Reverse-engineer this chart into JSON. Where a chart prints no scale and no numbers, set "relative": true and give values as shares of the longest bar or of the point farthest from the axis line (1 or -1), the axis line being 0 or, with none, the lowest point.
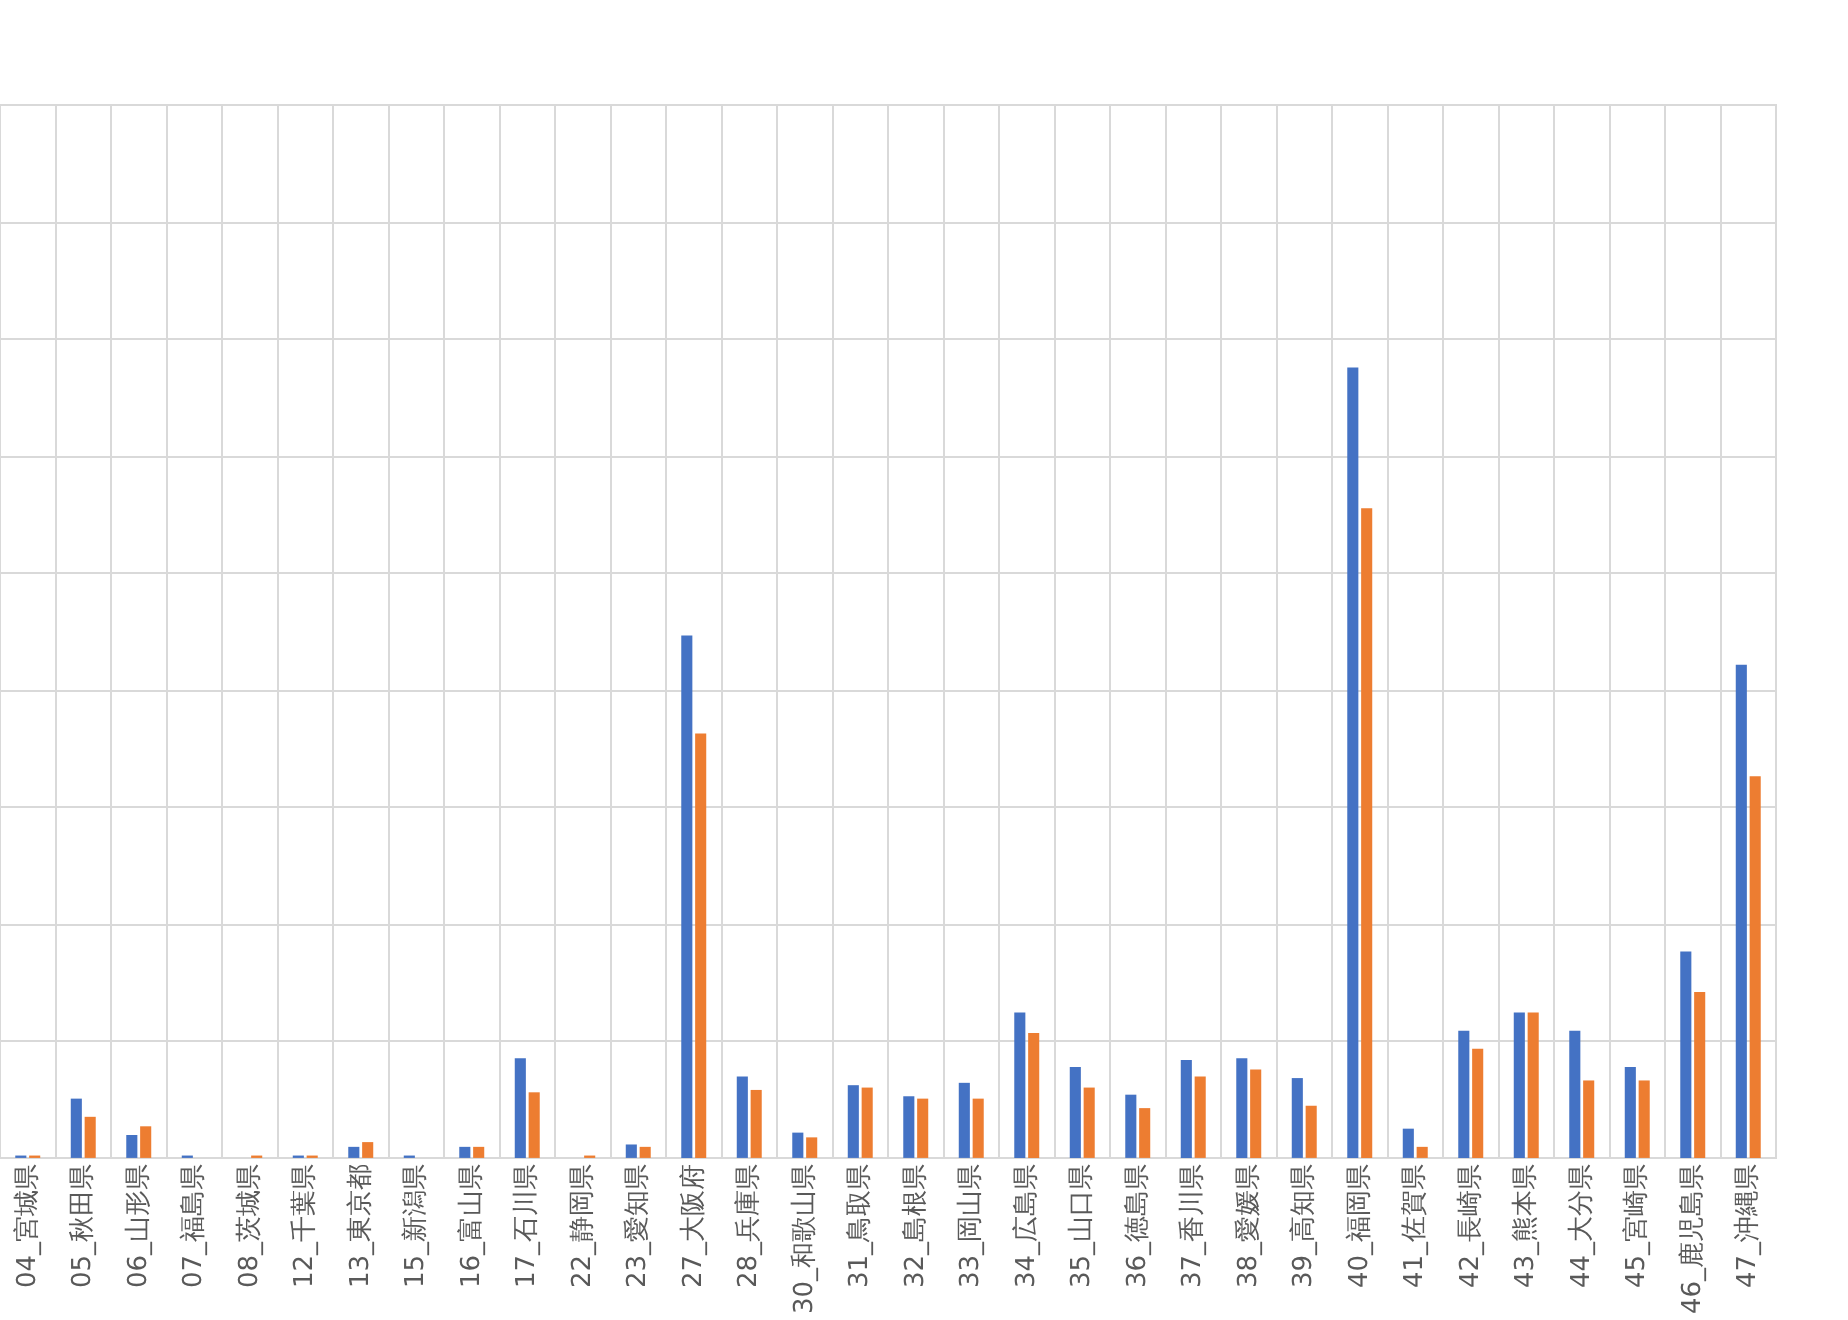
{
  "chart_data": {
    "type": "bar",
    "relative": true,
    "grid": true,
    "legend": false,
    "categories": [
      "04_宮城県",
      "05_秋田県",
      "06_山形県",
      "07_福島県",
      "08_茨城県",
      "12_千葉県",
      "13_東京都",
      "15_新潟県",
      "16_富山県",
      "17_石川県",
      "22_静岡県",
      "23_愛知県",
      "27_大阪府",
      "28_兵庫県",
      "30_和歌山県",
      "31_鳥取県",
      "32_島根県",
      "33_岡山県",
      "34_広島県",
      "35_山口県",
      "36_徳島県",
      "37_香川県",
      "38_愛媛県",
      "39_高知県",
      "40_福岡県",
      "41_佐賀県",
      "42_長崎県",
      "43_熊本県",
      "44_大分県",
      "45_宮崎県",
      "46_鹿児島県",
      "47_沖縄県"
    ],
    "series": [
      {
        "color": "#4472c4",
        "values": [
          0.003,
          0.075,
          0.029,
          0.003,
          0,
          0.003,
          0.014,
          0.003,
          0.014,
          0.126,
          0,
          0.017,
          0.661,
          0.103,
          0.032,
          0.092,
          0.078,
          0.095,
          0.184,
          0.115,
          0.08,
          0.124,
          0.126,
          0.101,
          1,
          0.037,
          0.161,
          0.184,
          0.161,
          0.115,
          0.261,
          0.624
        ]
      },
      {
        "color": "#ed7d31",
        "values": [
          0.003,
          0.052,
          0.04,
          0,
          0.003,
          0.003,
          0.02,
          0,
          0.014,
          0.083,
          0.003,
          0.014,
          0.537,
          0.086,
          0.026,
          0.089,
          0.075,
          0.075,
          0.158,
          0.089,
          0.063,
          0.103,
          0.112,
          0.066,
          0.822,
          0.014,
          0.138,
          0.184,
          0.098,
          0.098,
          0.21,
          0.483
        ]
      }
    ]
  }
}
